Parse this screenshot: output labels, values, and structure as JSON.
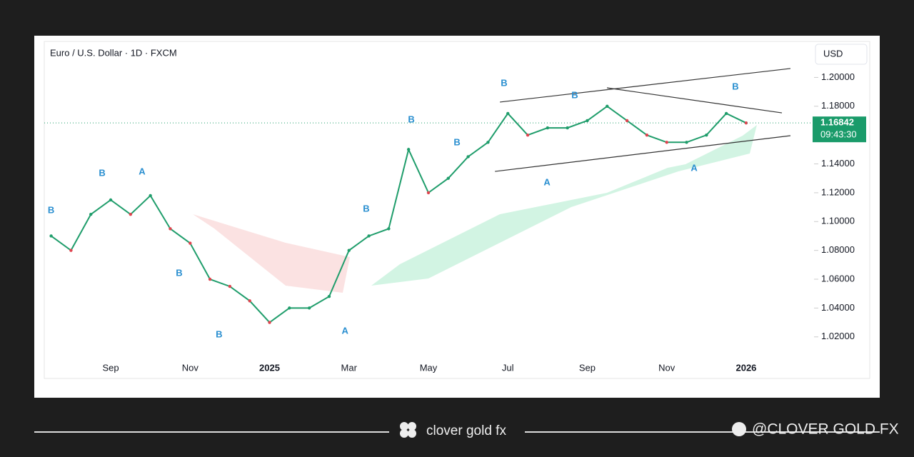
{
  "chart_data": {
    "type": "line",
    "title": "Euro / U.S. Dollar · 1D · FXCM",
    "currency": "USD",
    "countdown": "09:43:30",
    "categories": [
      null,
      null,
      null,
      "Sep",
      null,
      null,
      null,
      "Nov",
      null,
      null,
      null,
      "2025",
      null,
      null,
      null,
      "Mar",
      null,
      null,
      null,
      "May",
      null,
      null,
      null,
      "Jul",
      null,
      null,
      null,
      "Sep",
      null,
      null,
      null,
      "Nov",
      null,
      null,
      null,
      "2026"
    ],
    "series": [
      {
        "name": "EUR/USD",
        "color": "#1f9d6b",
        "values": [
          1.09,
          1.08,
          1.105,
          1.115,
          1.105,
          1.118,
          1.095,
          1.085,
          1.06,
          1.055,
          1.045,
          1.03,
          1.04,
          1.04,
          1.048,
          1.08,
          1.09,
          1.095,
          1.15,
          1.12,
          1.13,
          1.145,
          1.155,
          1.175,
          1.16,
          1.165,
          1.165,
          1.17,
          1.18,
          1.17,
          1.16,
          1.155,
          1.155,
          1.16,
          1.175,
          1.16842
        ]
      }
    ],
    "ylim": [
      1.006,
      1.224
    ],
    "yticks": [
      {
        "value": 1.02,
        "label": "1.02000"
      },
      {
        "value": 1.04,
        "label": "1.04000"
      },
      {
        "value": 1.06,
        "label": "1.06000"
      },
      {
        "value": 1.08,
        "label": "1.08000"
      },
      {
        "value": 1.1,
        "label": "1.10000"
      },
      {
        "value": 1.12,
        "label": "1.12000"
      },
      {
        "value": 1.14,
        "label": "1.14000"
      },
      {
        "value": 1.16,
        "label": "1.16000"
      },
      {
        "value": 1.18,
        "label": "1.18000"
      },
      {
        "value": 1.2,
        "label": "1.20000"
      }
    ],
    "annotations": [
      {
        "label": "B",
        "x": 0,
        "y": 1.1076
      },
      {
        "label": "B",
        "x": 2.57,
        "y": 1.1333
      },
      {
        "label": "A",
        "x": 4.58,
        "y": 1.1343
      },
      {
        "label": "B",
        "x": 6.45,
        "y": 1.064
      },
      {
        "label": "B",
        "x": 8.46,
        "y": 1.0213
      },
      {
        "label": "A",
        "x": 14.8,
        "y": 1.0238
      },
      {
        "label": "B",
        "x": 15.87,
        "y": 1.1085
      },
      {
        "label": "B",
        "x": 18.14,
        "y": 1.1705
      },
      {
        "label": "B",
        "x": 20.44,
        "y": 1.1546
      },
      {
        "label": "B",
        "x": 22.81,
        "y": 1.1958
      },
      {
        "label": "A",
        "x": 24.97,
        "y": 1.1269
      },
      {
        "label": "B",
        "x": 26.37,
        "y": 1.1873
      },
      {
        "label": "A",
        "x": 32.38,
        "y": 1.1368
      },
      {
        "label": "B",
        "x": 34.46,
        "y": 1.1933
      }
    ],
    "trendlines": [
      {
        "x": [
          22.6,
          37.23
        ],
        "y": [
          1.1829,
          1.2062
        ]
      },
      {
        "x": [
          22.35,
          37.23
        ],
        "y": [
          1.1348,
          1.1596
        ]
      },
      {
        "x": [
          27.99,
          36.8
        ],
        "y": [
          1.1928,
          1.1754
        ]
      }
    ]
  },
  "footer": {
    "brand": "clover gold fx",
    "handle": "@CLOVER GOLD FX"
  }
}
